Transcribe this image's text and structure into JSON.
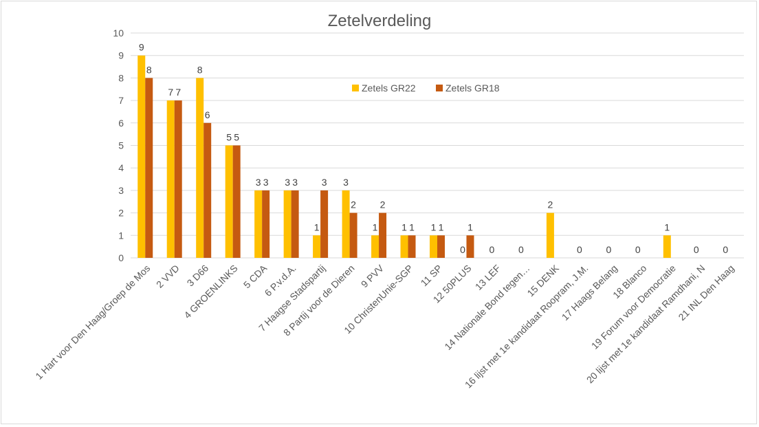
{
  "chart_data": {
    "type": "bar",
    "title": "Zetelverdeling",
    "xlabel": "",
    "ylabel": "",
    "ylim": [
      0,
      10
    ],
    "yticks": [
      0,
      1,
      2,
      3,
      4,
      5,
      6,
      7,
      8,
      9,
      10
    ],
    "grid": true,
    "legend_position": "top-center-right",
    "categories": [
      "1 Hart voor Den Haag/Groep de Mos",
      "2 VVD",
      "3 D66",
      "4 GROENLINKS",
      "5 CDA",
      "6 P.v.d.A.",
      "7 Haagse Stadspartij",
      "8 Partij voor de Dieren",
      "9 PVV",
      "10 ChristenUnie-SGP",
      "11 SP",
      "12 50PLUS",
      "13 LEF",
      "14 Nationale Bond tegen…",
      "15 DENK",
      "16 lijst met 1e kandidaat Roopram, J.M.",
      "17 Haags Belang",
      "18 Blanco",
      "19 Forum voor Democratie",
      "20 lijst met 1e kandidaat Ramdhani, N",
      "21 INL Den Haag"
    ],
    "series": [
      {
        "name": "Zetels GR22",
        "color": "#ffc000",
        "values": [
          9,
          7,
          8,
          5,
          3,
          3,
          1,
          3,
          1,
          1,
          1,
          0,
          0,
          0,
          2,
          0,
          0,
          0,
          1,
          0,
          0
        ]
      },
      {
        "name": "Zetels GR18",
        "color": "#c55a11",
        "values": [
          8,
          7,
          6,
          5,
          3,
          3,
          3,
          2,
          2,
          1,
          1,
          1,
          null,
          null,
          null,
          null,
          null,
          null,
          null,
          null,
          null
        ]
      }
    ]
  }
}
